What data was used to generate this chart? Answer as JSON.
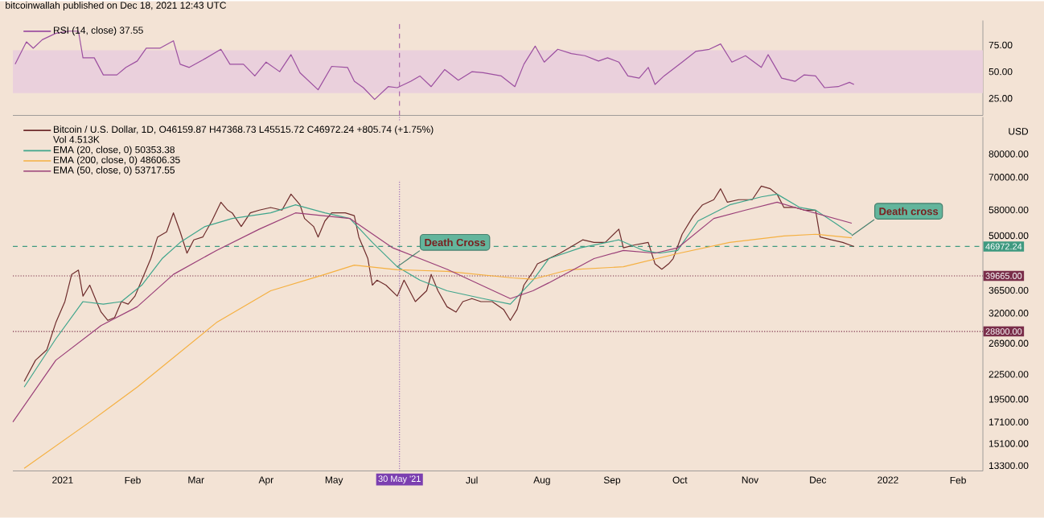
{
  "chart_data": [
    {
      "type": "line",
      "title": "bitcoinwallah published on Dec 18, 2021 12:43 UTC",
      "series": [
        {
          "name": "RSI (14, close) 37.55",
          "color": "#9c4fa0",
          "x": [
            "2020-12-11",
            "2020-12-16",
            "2020-12-19",
            "2020-12-23",
            "2020-12-29",
            "2021-01-04",
            "2021-01-08",
            "2021-01-10",
            "2021-01-15",
            "2021-01-19",
            "2021-01-25",
            "2021-01-29",
            "2021-02-03",
            "2021-02-07",
            "2021-02-13",
            "2021-02-19",
            "2021-02-22",
            "2021-02-26",
            "2021-03-04",
            "2021-03-12",
            "2021-03-16",
            "2021-03-22",
            "2021-03-27",
            "2021-04-01",
            "2021-04-07",
            "2021-04-12",
            "2021-04-16",
            "2021-04-24",
            "2021-04-30",
            "2021-05-07",
            "2021-05-10",
            "2021-05-14",
            "2021-05-19",
            "2021-05-25",
            "2021-05-29",
            "2021-06-04",
            "2021-06-08",
            "2021-06-13",
            "2021-06-19",
            "2021-06-25",
            "2021-07-01",
            "2021-07-06",
            "2021-07-14",
            "2021-07-20",
            "2021-07-24",
            "2021-07-29",
            "2021-08-02",
            "2021-08-08",
            "2021-08-14",
            "2021-08-20",
            "2021-08-26",
            "2021-08-30",
            "2021-09-04",
            "2021-09-08",
            "2021-09-13",
            "2021-09-17",
            "2021-09-20",
            "2021-09-24",
            "2021-10-02",
            "2021-10-08",
            "2021-10-14",
            "2021-10-19",
            "2021-10-24",
            "2021-10-30",
            "2021-11-06",
            "2021-11-09",
            "2021-11-15",
            "2021-11-21",
            "2021-11-25",
            "2021-11-30",
            "2021-12-04",
            "2021-12-10",
            "2021-12-15",
            "2021-12-17"
          ],
          "values": [
            57,
            78,
            72,
            80,
            86,
            88,
            88,
            63,
            63,
            47,
            47,
            54,
            60,
            72,
            72,
            79,
            57,
            54,
            61,
            71,
            57,
            57,
            46,
            59,
            50,
            66,
            49,
            33,
            55,
            54,
            41,
            35,
            24,
            36,
            35,
            41,
            46,
            36,
            52,
            42,
            50,
            49,
            46,
            36,
            57,
            74,
            59,
            71,
            67,
            65,
            60,
            63,
            59,
            46,
            44,
            54,
            38,
            46,
            59,
            69,
            71,
            76,
            59,
            65,
            54,
            66,
            44,
            41,
            47,
            46,
            35,
            36,
            40,
            38
          ]
        }
      ],
      "xlim": [
        "2020-12-10",
        "2022-02-12"
      ],
      "ylim": [
        9,
        98
      ],
      "yticks": [
        {
          "value": 25,
          "label": "25.00"
        },
        {
          "value": 50,
          "label": "50.00"
        },
        {
          "value": 75,
          "label": "75.00"
        }
      ],
      "tick_labels": "y",
      "bands": [
        {
          "axis": "y",
          "from": 30,
          "to": 70,
          "color": "#ead0dc"
        }
      ],
      "ref_lines": [
        {
          "axis": "x",
          "value": "2021-05-30",
          "color": "#9c4fa0",
          "line_style": "dashed"
        }
      ],
      "legend": "top left"
    },
    {
      "type": "line",
      "ylabel": "USD",
      "log": "y",
      "series": [
        {
          "name": "Bitcoin / U.S. Dollar, 1D, O46159.87 H47368.73 L45515.72 C46972.24 +805.74 (+1.75%)",
          "color": "#6e2c2c",
          "x": [
            "2020-12-15",
            "2020-12-20",
            "2020-12-25",
            "2020-12-29",
            "2021-01-02",
            "2021-01-05",
            "2021-01-08",
            "2021-01-10",
            "2021-01-13",
            "2021-01-16",
            "2021-01-18",
            "2021-01-21",
            "2021-01-24",
            "2021-01-27",
            "2021-01-30",
            "2021-02-02",
            "2021-02-05",
            "2021-02-09",
            "2021-02-12",
            "2021-02-16",
            "2021-02-19",
            "2021-02-22",
            "2021-02-25",
            "2021-02-28",
            "2021-03-04",
            "2021-03-08",
            "2021-03-12",
            "2021-03-15",
            "2021-03-17",
            "2021-03-21",
            "2021-03-25",
            "2021-03-29",
            "2021-04-03",
            "2021-04-08",
            "2021-04-12",
            "2021-04-16",
            "2021-04-18",
            "2021-04-22",
            "2021-04-24",
            "2021-04-27",
            "2021-04-30",
            "2021-05-06",
            "2021-05-10",
            "2021-05-12",
            "2021-05-16",
            "2021-05-18",
            "2021-05-20",
            "2021-05-24",
            "2021-05-29",
            "2021-06-01",
            "2021-06-06",
            "2021-06-11",
            "2021-06-13",
            "2021-06-16",
            "2021-06-20",
            "2021-06-24",
            "2021-06-27",
            "2021-07-01",
            "2021-07-05",
            "2021-07-10",
            "2021-07-15",
            "2021-07-18",
            "2021-07-21",
            "2021-07-24",
            "2021-07-28",
            "2021-07-30",
            "2021-08-04",
            "2021-08-09",
            "2021-08-13",
            "2021-08-19",
            "2021-08-24",
            "2021-08-29",
            "2021-09-04",
            "2021-09-06",
            "2021-09-11",
            "2021-09-17",
            "2021-09-20",
            "2021-09-23",
            "2021-09-26",
            "2021-09-28",
            "2021-10-02",
            "2021-10-07",
            "2021-10-11",
            "2021-10-16",
            "2021-10-19",
            "2021-10-22",
            "2021-10-27",
            "2021-11-02",
            "2021-11-06",
            "2021-11-10",
            "2021-11-13",
            "2021-11-16",
            "2021-11-21",
            "2021-11-25",
            "2021-11-30",
            "2021-12-02",
            "2021-12-07",
            "2021-12-12",
            "2021-12-17"
          ],
          "values": [
            21600,
            24400,
            25900,
            30300,
            34200,
            40000,
            41000,
            35300,
            37600,
            34200,
            32200,
            30700,
            31200,
            34200,
            33700,
            35300,
            38700,
            43800,
            49600,
            51100,
            57000,
            51100,
            45200,
            48800,
            49600,
            54400,
            60600,
            57900,
            57000,
            52700,
            57000,
            57900,
            58800,
            57900,
            63500,
            59700,
            55200,
            52700,
            49600,
            54400,
            57000,
            57000,
            56100,
            49600,
            43800,
            37600,
            38700,
            37600,
            35300,
            38700,
            34200,
            36400,
            40000,
            36400,
            33200,
            32200,
            34200,
            34800,
            34200,
            34200,
            32700,
            30700,
            32700,
            37600,
            40600,
            42500,
            43800,
            45200,
            46600,
            48800,
            48100,
            48100,
            51900,
            46600,
            47400,
            48100,
            42500,
            41200,
            42500,
            43800,
            50400,
            56100,
            59700,
            61500,
            65500,
            60600,
            61500,
            61500,
            66500,
            65500,
            63500,
            58800,
            58800,
            57900,
            57900,
            49600,
            48800,
            48100,
            46972
          ]
        },
        {
          "name": "EMA (20, close, 0) 50353.38",
          "color": "#3fa58c",
          "x": [
            "2020-12-15",
            "2020-12-29",
            "2021-01-10",
            "2021-01-19",
            "2021-01-27",
            "2021-02-05",
            "2021-02-14",
            "2021-02-22",
            "2021-03-05",
            "2021-03-17",
            "2021-04-03",
            "2021-04-14",
            "2021-04-27",
            "2021-05-08",
            "2021-05-18",
            "2021-05-29",
            "2021-06-08",
            "2021-06-20",
            "2021-07-06",
            "2021-07-18",
            "2021-07-28",
            "2021-08-04",
            "2021-08-18",
            "2021-09-04",
            "2021-09-15",
            "2021-09-22",
            "2021-09-30",
            "2021-10-09",
            "2021-10-23",
            "2021-11-06",
            "2021-11-13",
            "2021-11-23",
            "2021-11-30",
            "2021-12-09",
            "2021-12-16"
          ],
          "values": [
            20900,
            27600,
            34200,
            33700,
            34200,
            37600,
            43800,
            48100,
            52700,
            55200,
            57000,
            59700,
            57000,
            55200,
            48100,
            41800,
            38700,
            36400,
            34800,
            33700,
            38700,
            43800,
            46600,
            48800,
            45900,
            45200,
            45900,
            54400,
            59700,
            62500,
            63500,
            58800,
            57900,
            53600,
            50353
          ]
        },
        {
          "name": "EMA (200, close, 0) 48606.35",
          "color": "#f5b041",
          "x": [
            "2020-12-15",
            "2021-01-13",
            "2021-02-03",
            "2021-03-10",
            "2021-04-03",
            "2021-04-27",
            "2021-05-10",
            "2021-05-29",
            "2021-06-20",
            "2021-07-19",
            "2021-07-28",
            "2021-08-13",
            "2021-09-06",
            "2021-09-30",
            "2021-10-23",
            "2021-11-16",
            "2021-11-30",
            "2021-12-16"
          ],
          "values": [
            13100,
            17100,
            20900,
            30300,
            36400,
            40000,
            42200,
            41100,
            40700,
            39200,
            38900,
            41100,
            41800,
            45100,
            48100,
            49900,
            50400,
            49400
          ]
        },
        {
          "name": "EMA (50, close, 0) 53717.55",
          "color": "#9a3f78",
          "x": [
            "2020-12-10",
            "2020-12-29",
            "2021-01-18",
            "2021-02-03",
            "2021-02-19",
            "2021-03-10",
            "2021-03-29",
            "2021-04-14",
            "2021-05-08",
            "2021-05-27",
            "2021-06-20",
            "2021-07-18",
            "2021-07-28",
            "2021-08-04",
            "2021-08-24",
            "2021-09-06",
            "2021-09-20",
            "2021-09-30",
            "2021-10-16",
            "2021-10-30",
            "2021-11-13",
            "2021-11-25",
            "2021-12-16"
          ],
          "values": [
            17100,
            24400,
            29800,
            33200,
            40000,
            45900,
            51900,
            57000,
            55200,
            46600,
            41200,
            34800,
            36400,
            38100,
            43800,
            45900,
            45200,
            46600,
            55200,
            57900,
            60600,
            57900,
            53718
          ]
        }
      ],
      "xlim": [
        "2020-12-10",
        "2022-02-12"
      ],
      "xticks": [
        {
          "value": "2021-01-01",
          "label": "2021"
        },
        {
          "value": "2021-02-01",
          "label": "Feb"
        },
        {
          "value": "2021-03-01",
          "label": "Mar"
        },
        {
          "value": "2021-04-01",
          "label": "Apr"
        },
        {
          "value": "2021-05-01",
          "label": "May"
        },
        {
          "value": "2021-07-01",
          "label": "Jul"
        },
        {
          "value": "2021-08-01",
          "label": "Aug"
        },
        {
          "value": "2021-09-01",
          "label": "Sep"
        },
        {
          "value": "2021-10-01",
          "label": "Oct"
        },
        {
          "value": "2021-11-01",
          "label": "Nov"
        },
        {
          "value": "2021-12-01",
          "label": "Dec"
        },
        {
          "value": "2022-01-01",
          "label": "2022"
        },
        {
          "value": "2022-02-01",
          "label": "Feb"
        }
      ],
      "ylim": [
        12900,
        99000
      ],
      "yticks": [
        {
          "value": 13300,
          "label": "13300.00"
        },
        {
          "value": 15100,
          "label": "15100.00"
        },
        {
          "value": 17100,
          "label": "17100.00"
        },
        {
          "value": 19500,
          "label": "19500.00"
        },
        {
          "value": 22500,
          "label": "22500.00"
        },
        {
          "value": 26900,
          "label": "26900.00"
        },
        {
          "value": 32000,
          "label": "32000.00"
        },
        {
          "value": 36500,
          "label": "36500.00"
        },
        {
          "value": 50000,
          "label": "50000.00"
        },
        {
          "value": 58000,
          "label": "58000.00"
        },
        {
          "value": 70000,
          "label": "70000.00"
        },
        {
          "value": 80000,
          "label": "80000.00"
        }
      ],
      "ref_lines": [
        {
          "axis": "x",
          "value": "2021-05-30",
          "label": "30 May '21",
          "color": "#7b3fb0",
          "line_style": "dotted"
        },
        {
          "axis": "y",
          "value": 39665,
          "label": "39665.00",
          "color": "#7a2e4a",
          "line_style": "dotted"
        },
        {
          "axis": "y",
          "value": 28800,
          "label": "28800.00",
          "color": "#7a2e4a",
          "line_style": "dotted"
        },
        {
          "axis": "y",
          "value": 46972.24,
          "label": "46972.24",
          "color": "#3f9a80",
          "line_style": "dashed"
        }
      ],
      "annotations": [
        "Vol 4.513K",
        {
          "text": "Death Cross",
          "x": "2021-05-29",
          "y": 41800
        },
        {
          "text": "Death cross",
          "x": "2021-12-16",
          "y": 50000
        }
      ],
      "legend": "top left"
    }
  ]
}
